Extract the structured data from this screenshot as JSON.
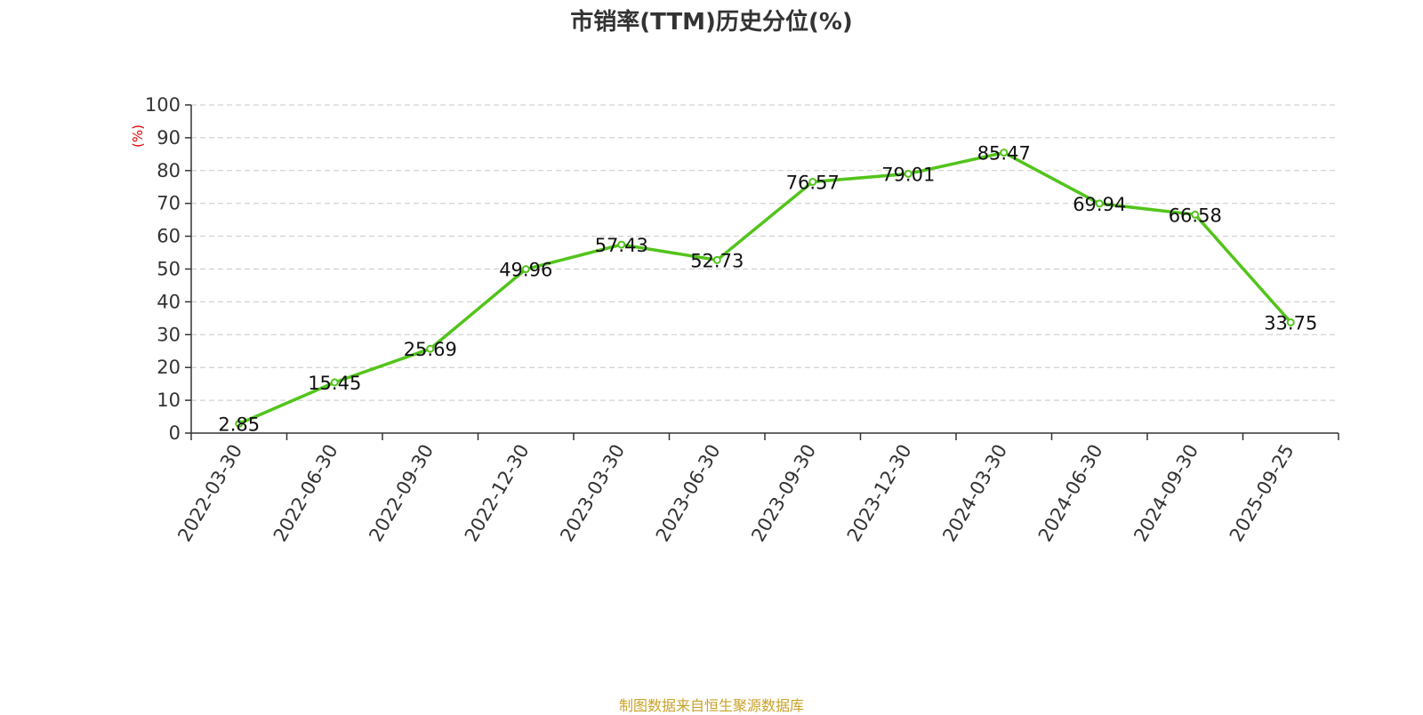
{
  "chart_data": {
    "type": "line",
    "title": "市销率(TTM)历史分位(%)",
    "ylabel": "(%)",
    "xlabel": "",
    "ylim": [
      0,
      100
    ],
    "yticks": [
      0,
      10,
      20,
      30,
      40,
      50,
      60,
      70,
      80,
      90,
      100
    ],
    "grid": true,
    "categories": [
      "2022-03-30",
      "2022-06-30",
      "2022-09-30",
      "2022-12-30",
      "2023-03-30",
      "2023-06-30",
      "2023-09-30",
      "2023-12-30",
      "2024-03-30",
      "2024-06-30",
      "2024-09-30",
      "2025-09-25"
    ],
    "series": [
      {
        "values": [
          2.85,
          15.45,
          25.69,
          49.96,
          57.43,
          52.73,
          76.57,
          79.01,
          85.47,
          69.94,
          66.58,
          33.75
        ],
        "labels": [
          "2.85",
          "15.45",
          "25.69",
          "49.96",
          "57.43",
          "52.73",
          "76.57",
          "79.01",
          "85.47",
          "69.94",
          "66.58",
          "33.75"
        ],
        "color": "#52c41a"
      }
    ]
  },
  "source": "制图数据来自恒生聚源数据库"
}
